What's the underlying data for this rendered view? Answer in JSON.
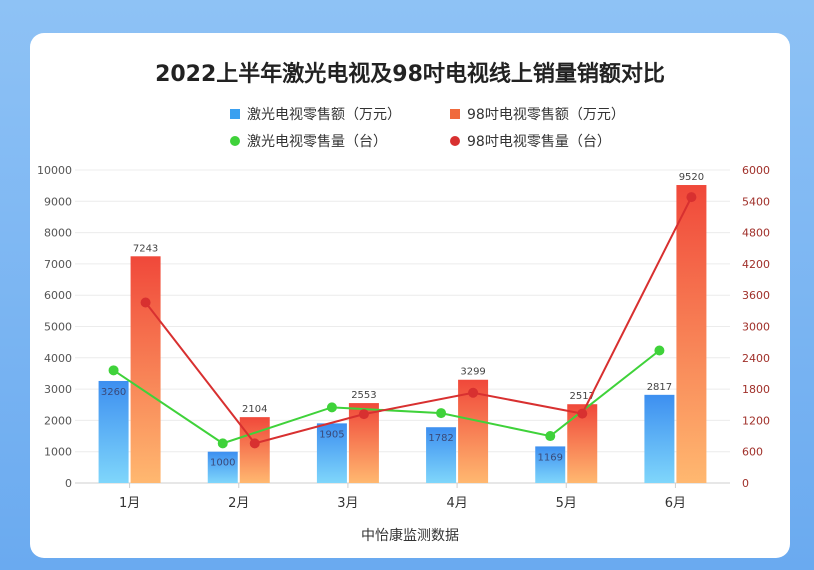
{
  "chart_data": {
    "type": "bar",
    "title": "2022上半年激光电视及98吋电视线上销量销额对比",
    "source": "中怡康监测数据",
    "categories": [
      "1月",
      "2月",
      "3月",
      "4月",
      "5月",
      "6月"
    ],
    "bar_series": [
      {
        "name": "激光电视零售额（万元）",
        "values": [
          3260,
          1000,
          1905,
          1782,
          1169,
          2817
        ],
        "color": "#3aa0f0"
      },
      {
        "name": "98吋电视零售额（万元）",
        "values": [
          7243,
          2104,
          2553,
          3299,
          2517,
          9520
        ],
        "color": "#f06a3c"
      }
    ],
    "line_series": [
      {
        "name": "激光电视零售量（台）",
        "values": [
          2160,
          760,
          1450,
          1340,
          900,
          2540
        ],
        "color": "#3fd23a"
      },
      {
        "name": "98吋电视零售量（台）",
        "values": [
          3460,
          760,
          1320,
          1730,
          1330,
          5480
        ],
        "color": "#d83030"
      }
    ],
    "y_left": {
      "min": 0,
      "max": 10000,
      "ticks": [
        0,
        1000,
        2000,
        3000,
        4000,
        5000,
        6000,
        7000,
        8000,
        9000,
        10000
      ]
    },
    "y_right": {
      "min": 0,
      "max": 6000,
      "ticks": [
        0,
        600,
        1200,
        1800,
        2400,
        3000,
        3600,
        4200,
        4800,
        5400,
        6000
      ]
    },
    "legend_position": "top",
    "grid": true
  }
}
